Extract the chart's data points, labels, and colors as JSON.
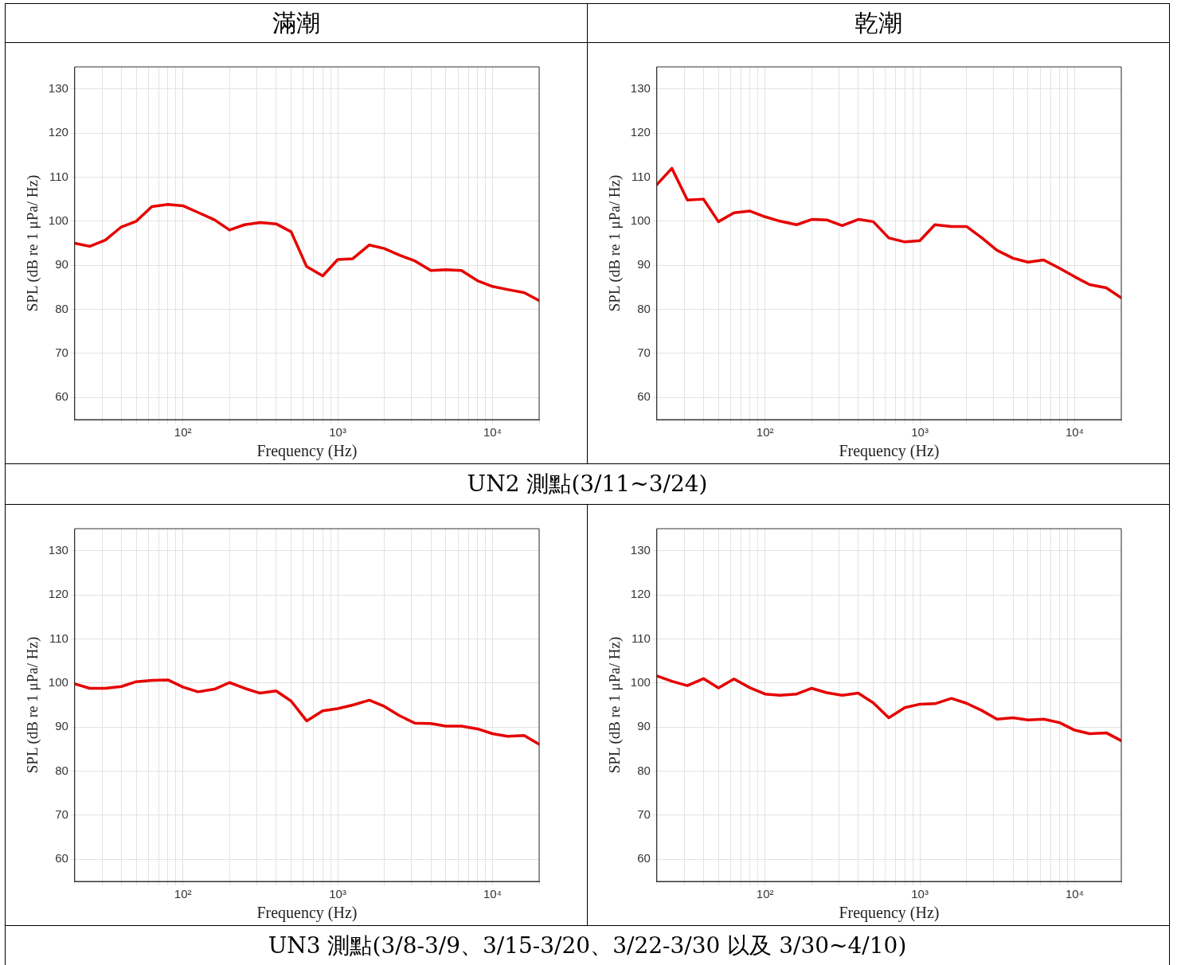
{
  "chart_data": [
    {
      "type": "line",
      "title": "滿潮",
      "xlabel": "Frequency (Hz)",
      "ylabel": "SPL (dB re 1 μPa/ Hz)",
      "log": "x",
      "grid": true,
      "legend": false,
      "x": [
        20,
        25,
        31.5,
        40,
        50,
        63,
        80,
        100,
        125,
        160,
        200,
        250,
        315,
        400,
        500,
        630,
        800,
        1000,
        1250,
        1600,
        2000,
        2500,
        3150,
        4000,
        5000,
        6300,
        8000,
        10000,
        12500,
        16000,
        20000
      ],
      "xlim": [
        20,
        20000
      ],
      "xticks": [
        {
          "value": 20,
          "label": null
        },
        {
          "value": 30,
          "label": null
        },
        {
          "value": 40,
          "label": null
        },
        {
          "value": 50,
          "label": null
        },
        {
          "value": 60,
          "label": null
        },
        {
          "value": 70,
          "label": null
        },
        {
          "value": 80,
          "label": null
        },
        {
          "value": 90,
          "label": null
        },
        {
          "value": 100,
          "label": "10²"
        },
        {
          "value": 200,
          "label": null
        },
        {
          "value": 300,
          "label": null
        },
        {
          "value": 400,
          "label": null
        },
        {
          "value": 500,
          "label": null
        },
        {
          "value": 600,
          "label": null
        },
        {
          "value": 700,
          "label": null
        },
        {
          "value": 800,
          "label": null
        },
        {
          "value": 900,
          "label": null
        },
        {
          "value": 1000,
          "label": "10³"
        },
        {
          "value": 2000,
          "label": null
        },
        {
          "value": 3000,
          "label": null
        },
        {
          "value": 4000,
          "label": null
        },
        {
          "value": 5000,
          "label": null
        },
        {
          "value": 6000,
          "label": null
        },
        {
          "value": 7000,
          "label": null
        },
        {
          "value": 8000,
          "label": null
        },
        {
          "value": 9000,
          "label": null
        },
        {
          "value": 10000,
          "label": "10⁴"
        },
        {
          "value": 20000,
          "label": null
        }
      ],
      "ylim": [
        55,
        135
      ],
      "yticks": [
        60,
        70,
        80,
        90,
        100,
        110,
        120,
        130
      ],
      "series": [
        {
          "color": "#e60000",
          "values": [
            95,
            94.3,
            95.7,
            98.7,
            100,
            103.3,
            103.8,
            103.5,
            102,
            100.3,
            98,
            99.2,
            99.7,
            99.4,
            97.6,
            89.7,
            87.6,
            91.3,
            91.5,
            94.6,
            93.8,
            92.3,
            91,
            88.8,
            89,
            88.8,
            86.5,
            85.2,
            84.5,
            83.8,
            82
          ]
        }
      ]
    },
    {
      "type": "line",
      "title": "乾潮",
      "xlabel": "Frequency (Hz)",
      "ylabel": "SPL (dB re 1 μPa/ Hz)",
      "log": "x",
      "grid": true,
      "legend": false,
      "annotations": [
        "UN2 測點(3/11~3/24)"
      ],
      "x": [
        20,
        25,
        31.5,
        40,
        50,
        63,
        80,
        100,
        125,
        160,
        200,
        250,
        315,
        400,
        500,
        630,
        800,
        1000,
        1250,
        1600,
        2000,
        2500,
        3150,
        4000,
        5000,
        6300,
        8000,
        10000,
        12500,
        16000,
        20000
      ],
      "xlim": [
        20,
        20000
      ],
      "xticks": [
        {
          "value": 20,
          "label": null
        },
        {
          "value": 30,
          "label": null
        },
        {
          "value": 40,
          "label": null
        },
        {
          "value": 50,
          "label": null
        },
        {
          "value": 60,
          "label": null
        },
        {
          "value": 70,
          "label": null
        },
        {
          "value": 80,
          "label": null
        },
        {
          "value": 90,
          "label": null
        },
        {
          "value": 100,
          "label": "10²"
        },
        {
          "value": 200,
          "label": null
        },
        {
          "value": 300,
          "label": null
        },
        {
          "value": 400,
          "label": null
        },
        {
          "value": 500,
          "label": null
        },
        {
          "value": 600,
          "label": null
        },
        {
          "value": 700,
          "label": null
        },
        {
          "value": 800,
          "label": null
        },
        {
          "value": 900,
          "label": null
        },
        {
          "value": 1000,
          "label": "10³"
        },
        {
          "value": 2000,
          "label": null
        },
        {
          "value": 3000,
          "label": null
        },
        {
          "value": 4000,
          "label": null
        },
        {
          "value": 5000,
          "label": null
        },
        {
          "value": 6000,
          "label": null
        },
        {
          "value": 7000,
          "label": null
        },
        {
          "value": 8000,
          "label": null
        },
        {
          "value": 9000,
          "label": null
        },
        {
          "value": 10000,
          "label": "10⁴"
        },
        {
          "value": 20000,
          "label": null
        }
      ],
      "ylim": [
        55,
        135
      ],
      "yticks": [
        60,
        70,
        80,
        90,
        100,
        110,
        120,
        130
      ],
      "series": [
        {
          "color": "#e60000",
          "values": [
            108.3,
            112,
            104.8,
            105,
            99.9,
            101.9,
            102.3,
            101,
            100,
            99.2,
            100.4,
            100.3,
            99,
            100.4,
            99.9,
            96.2,
            95.3,
            95.6,
            99.2,
            98.8,
            98.8,
            96.3,
            93.4,
            91.6,
            90.7,
            91.2,
            89.3,
            87.4,
            85.6,
            84.9,
            82.6
          ]
        }
      ]
    },
    {
      "type": "line",
      "xlabel": "Frequency (Hz)",
      "ylabel": "SPL (dB re 1 μPa/ Hz)",
      "log": "x",
      "grid": true,
      "legend": false,
      "x": [
        20,
        25,
        31.5,
        40,
        50,
        63,
        80,
        100,
        125,
        160,
        200,
        250,
        315,
        400,
        500,
        630,
        800,
        1000,
        1250,
        1600,
        2000,
        2500,
        3150,
        4000,
        5000,
        6300,
        8000,
        10000,
        12500,
        16000,
        20000
      ],
      "xlim": [
        20,
        20000
      ],
      "xticks": [
        {
          "value": 20,
          "label": null
        },
        {
          "value": 30,
          "label": null
        },
        {
          "value": 40,
          "label": null
        },
        {
          "value": 50,
          "label": null
        },
        {
          "value": 60,
          "label": null
        },
        {
          "value": 70,
          "label": null
        },
        {
          "value": 80,
          "label": null
        },
        {
          "value": 90,
          "label": null
        },
        {
          "value": 100,
          "label": "10²"
        },
        {
          "value": 200,
          "label": null
        },
        {
          "value": 300,
          "label": null
        },
        {
          "value": 400,
          "label": null
        },
        {
          "value": 500,
          "label": null
        },
        {
          "value": 600,
          "label": null
        },
        {
          "value": 700,
          "label": null
        },
        {
          "value": 800,
          "label": null
        },
        {
          "value": 900,
          "label": null
        },
        {
          "value": 1000,
          "label": "10³"
        },
        {
          "value": 2000,
          "label": null
        },
        {
          "value": 3000,
          "label": null
        },
        {
          "value": 4000,
          "label": null
        },
        {
          "value": 5000,
          "label": null
        },
        {
          "value": 6000,
          "label": null
        },
        {
          "value": 7000,
          "label": null
        },
        {
          "value": 8000,
          "label": null
        },
        {
          "value": 9000,
          "label": null
        },
        {
          "value": 10000,
          "label": "10⁴"
        },
        {
          "value": 20000,
          "label": null
        }
      ],
      "ylim": [
        55,
        135
      ],
      "yticks": [
        60,
        70,
        80,
        90,
        100,
        110,
        120,
        130
      ],
      "series": [
        {
          "color": "#e60000",
          "values": [
            99.8,
            98.8,
            98.8,
            99.2,
            100.3,
            100.6,
            100.7,
            99.1,
            98,
            98.6,
            100.1,
            98.8,
            97.7,
            98.2,
            95.9,
            91.4,
            93.7,
            94.2,
            95,
            96.1,
            94.7,
            92.6,
            90.9,
            90.8,
            90.2,
            90.2,
            89.6,
            88.5,
            87.9,
            88.1,
            86.1
          ]
        }
      ]
    },
    {
      "type": "line",
      "xlabel": "Frequency (Hz)",
      "ylabel": "SPL (dB re 1 μPa/ Hz)",
      "log": "x",
      "grid": true,
      "legend": false,
      "annotations": [
        "UN3 測點(3/8-3/9、3/15-3/20、3/22-3/30 以及 3/30~4/10)"
      ],
      "x": [
        20,
        25,
        31.5,
        40,
        50,
        63,
        80,
        100,
        125,
        160,
        200,
        250,
        315,
        400,
        500,
        630,
        800,
        1000,
        1250,
        1600,
        2000,
        2500,
        3150,
        4000,
        5000,
        6300,
        8000,
        10000,
        12500,
        16000,
        20000
      ],
      "xlim": [
        20,
        20000
      ],
      "xticks": [
        {
          "value": 20,
          "label": null
        },
        {
          "value": 30,
          "label": null
        },
        {
          "value": 40,
          "label": null
        },
        {
          "value": 50,
          "label": null
        },
        {
          "value": 60,
          "label": null
        },
        {
          "value": 70,
          "label": null
        },
        {
          "value": 80,
          "label": null
        },
        {
          "value": 90,
          "label": null
        },
        {
          "value": 100,
          "label": "10²"
        },
        {
          "value": 200,
          "label": null
        },
        {
          "value": 300,
          "label": null
        },
        {
          "value": 400,
          "label": null
        },
        {
          "value": 500,
          "label": null
        },
        {
          "value": 600,
          "label": null
        },
        {
          "value": 700,
          "label": null
        },
        {
          "value": 800,
          "label": null
        },
        {
          "value": 900,
          "label": null
        },
        {
          "value": 1000,
          "label": "10³"
        },
        {
          "value": 2000,
          "label": null
        },
        {
          "value": 3000,
          "label": null
        },
        {
          "value": 4000,
          "label": null
        },
        {
          "value": 5000,
          "label": null
        },
        {
          "value": 6000,
          "label": null
        },
        {
          "value": 7000,
          "label": null
        },
        {
          "value": 8000,
          "label": null
        },
        {
          "value": 9000,
          "label": null
        },
        {
          "value": 10000,
          "label": "10⁴"
        },
        {
          "value": 20000,
          "label": null
        }
      ],
      "ylim": [
        55,
        135
      ],
      "yticks": [
        60,
        70,
        80,
        90,
        100,
        110,
        120,
        130
      ],
      "series": [
        {
          "color": "#e60000",
          "values": [
            101.6,
            100.4,
            99.4,
            101,
            98.9,
            100.9,
            98.9,
            97.5,
            97.2,
            97.5,
            98.8,
            97.8,
            97.2,
            97.7,
            95.5,
            92.1,
            94.4,
            95.2,
            95.3,
            96.5,
            95.4,
            93.8,
            91.8,
            92.1,
            91.6,
            91.8,
            91,
            89.3,
            88.5,
            88.7,
            86.9
          ]
        }
      ]
    }
  ]
}
